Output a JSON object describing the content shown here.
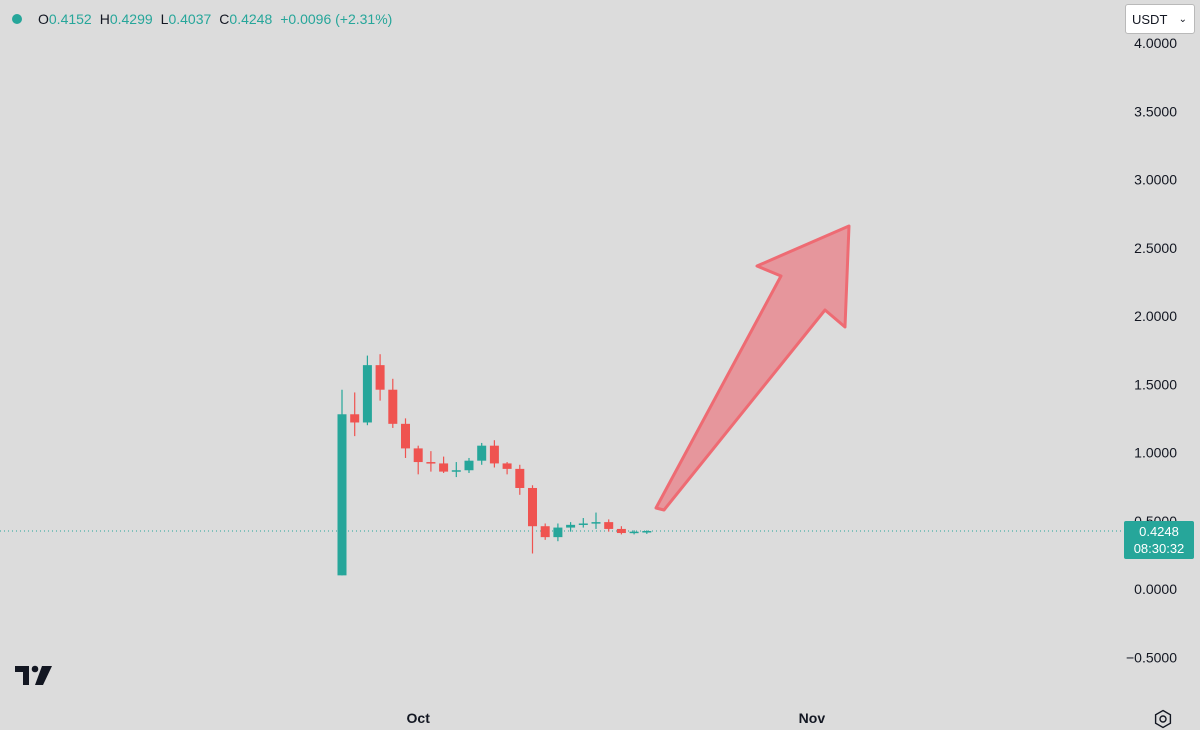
{
  "header": {
    "open_label": "O",
    "open_value": "0.4152",
    "high_label": "H",
    "high_value": "0.4299",
    "low_label": "L",
    "low_value": "0.4037",
    "close_label": "C",
    "close_value": "0.4248",
    "change": "+0.0096 (+2.31%)"
  },
  "currency_selector": {
    "value": "USDT"
  },
  "price_label": {
    "price": "0.4248",
    "countdown": "08:30:32"
  },
  "colors": {
    "up": "#26a69a",
    "down": "#ef5350",
    "arrow_fill": "#e88a90",
    "arrow_stroke": "#ee6b73",
    "axis_text": "#131722"
  },
  "icons": {
    "logo": "tradingview-logo-icon",
    "settings": "gear-icon"
  },
  "chart_data": {
    "type": "candlestick",
    "ylim": [
      -0.5,
      4.0
    ],
    "y_ticks": [
      "4.0000",
      "3.5000",
      "3.0000",
      "2.5000",
      "2.0000",
      "1.5000",
      "1.0000",
      "0.5000",
      "0.0000",
      "−0.5000"
    ],
    "y_tick_values": [
      4.0,
      3.5,
      3.0,
      2.5,
      2.0,
      1.5,
      1.0,
      0.5,
      0.0,
      -0.5
    ],
    "x_ticks": [
      {
        "label": "Oct",
        "index": 6
      },
      {
        "label": "Nov",
        "index": 37
      }
    ],
    "current_price": 0.4248,
    "candles": [
      {
        "o": 0.1,
        "h": 1.46,
        "l": 0.1,
        "c": 1.28
      },
      {
        "o": 1.28,
        "h": 1.44,
        "l": 1.12,
        "c": 1.22
      },
      {
        "o": 1.22,
        "h": 1.71,
        "l": 1.2,
        "c": 1.64
      },
      {
        "o": 1.64,
        "h": 1.72,
        "l": 1.38,
        "c": 1.46
      },
      {
        "o": 1.46,
        "h": 1.54,
        "l": 1.18,
        "c": 1.21
      },
      {
        "o": 1.21,
        "h": 1.25,
        "l": 0.96,
        "c": 1.03
      },
      {
        "o": 1.03,
        "h": 1.05,
        "l": 0.84,
        "c": 0.93
      },
      {
        "o": 0.93,
        "h": 1.01,
        "l": 0.86,
        "c": 0.92
      },
      {
        "o": 0.92,
        "h": 0.97,
        "l": 0.85,
        "c": 0.86
      },
      {
        "o": 0.86,
        "h": 0.93,
        "l": 0.82,
        "c": 0.87
      },
      {
        "o": 0.87,
        "h": 0.96,
        "l": 0.85,
        "c": 0.94
      },
      {
        "o": 0.94,
        "h": 1.07,
        "l": 0.91,
        "c": 1.05
      },
      {
        "o": 1.05,
        "h": 1.09,
        "l": 0.89,
        "c": 0.92
      },
      {
        "o": 0.92,
        "h": 0.93,
        "l": 0.84,
        "c": 0.88
      },
      {
        "o": 0.88,
        "h": 0.91,
        "l": 0.69,
        "c": 0.74
      },
      {
        "o": 0.74,
        "h": 0.76,
        "l": 0.26,
        "c": 0.46
      },
      {
        "o": 0.46,
        "h": 0.48,
        "l": 0.36,
        "c": 0.38
      },
      {
        "o": 0.38,
        "h": 0.48,
        "l": 0.35,
        "c": 0.45
      },
      {
        "o": 0.45,
        "h": 0.49,
        "l": 0.42,
        "c": 0.47
      },
      {
        "o": 0.47,
        "h": 0.52,
        "l": 0.45,
        "c": 0.48
      },
      {
        "o": 0.48,
        "h": 0.56,
        "l": 0.44,
        "c": 0.49
      },
      {
        "o": 0.49,
        "h": 0.51,
        "l": 0.42,
        "c": 0.44
      },
      {
        "o": 0.44,
        "h": 0.46,
        "l": 0.4,
        "c": 0.41
      },
      {
        "o": 0.41,
        "h": 0.43,
        "l": 0.4,
        "c": 0.42
      },
      {
        "o": 0.4152,
        "h": 0.4299,
        "l": 0.4037,
        "c": 0.4248
      }
    ],
    "annotation": {
      "type": "arrow",
      "direction": "up-right"
    }
  }
}
